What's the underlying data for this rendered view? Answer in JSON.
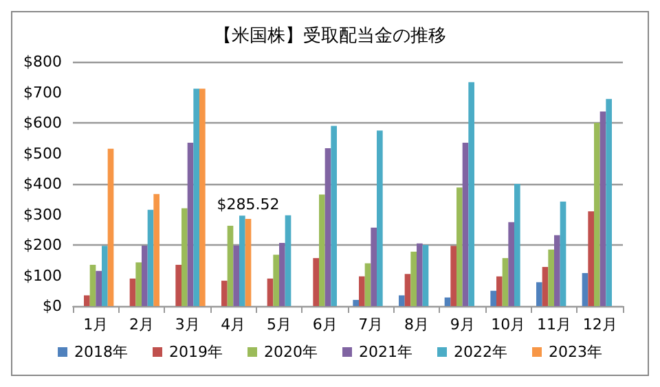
{
  "chart_data": {
    "type": "bar",
    "title": "【米国株】受取配当金の推移",
    "categories": [
      "1月",
      "2月",
      "3月",
      "4月",
      "5月",
      "6月",
      "7月",
      "8月",
      "9月",
      "10月",
      "11月",
      "12月"
    ],
    "series": [
      {
        "name": "2018年",
        "color": "#4f81bd",
        "values": [
          null,
          null,
          null,
          null,
          null,
          null,
          20,
          35,
          28,
          50,
          78,
          108
        ]
      },
      {
        "name": "2019年",
        "color": "#c0504d",
        "values": [
          35,
          90,
          135,
          83,
          90,
          157,
          97,
          105,
          197,
          97,
          128,
          310
        ]
      },
      {
        "name": "2020年",
        "color": "#9bbb59",
        "values": [
          135,
          143,
          320,
          263,
          168,
          365,
          140,
          178,
          388,
          157,
          185,
          600
        ]
      },
      {
        "name": "2021年",
        "color": "#8064a2",
        "values": [
          115,
          198,
          535,
          198,
          207,
          517,
          257,
          205,
          535,
          275,
          232,
          637
        ]
      },
      {
        "name": "2022年",
        "color": "#4bacc6",
        "values": [
          197,
          315,
          712,
          296,
          297,
          590,
          575,
          200,
          733,
          400,
          342,
          678
        ]
      },
      {
        "name": "2023年",
        "color": "#f79646",
        "values": [
          515,
          367,
          712,
          285.52,
          null,
          null,
          null,
          null,
          null,
          null,
          null,
          null
        ],
        "value_labels": [
          null,
          null,
          null,
          "$285.52",
          null,
          null,
          null,
          null,
          null,
          null,
          null,
          null
        ]
      }
    ],
    "ylim": [
      0,
      800
    ],
    "yticks": [
      {
        "value": 0,
        "label": "$0"
      },
      {
        "value": 100,
        "label": "$100"
      },
      {
        "value": 200,
        "label": "$200"
      },
      {
        "value": 300,
        "label": "$300"
      },
      {
        "value": 400,
        "label": "$400"
      },
      {
        "value": 500,
        "label": "$500"
      },
      {
        "value": 600,
        "label": "$600"
      },
      {
        "value": 700,
        "label": "$700"
      },
      {
        "value": 800,
        "label": "$800"
      }
    ],
    "grid": "y",
    "legend": "bottom"
  }
}
